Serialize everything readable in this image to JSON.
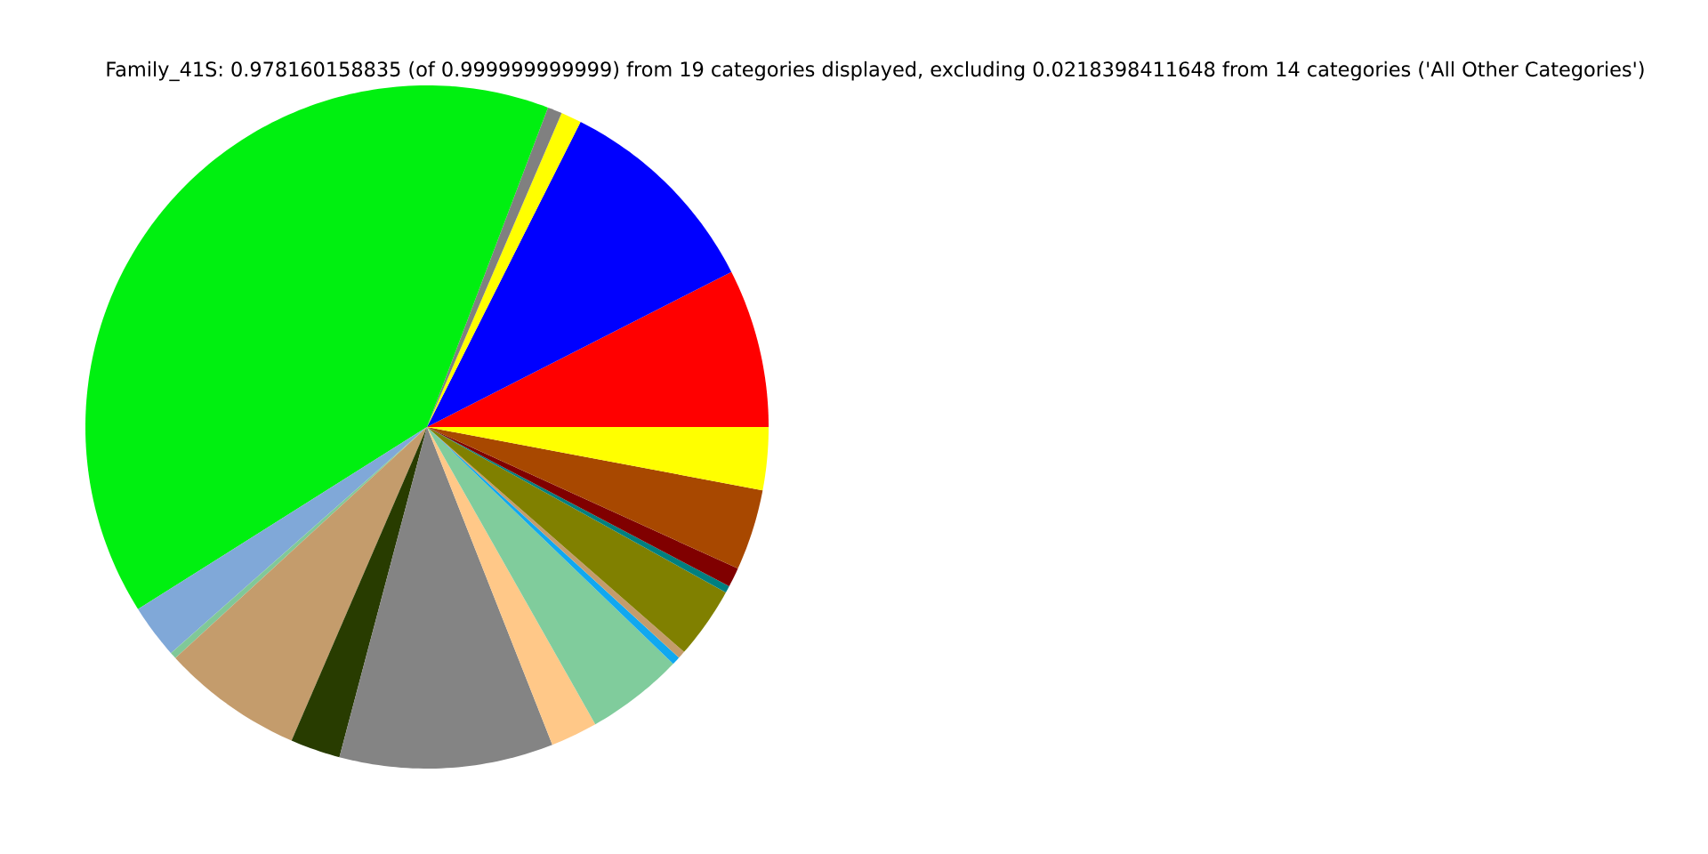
{
  "chart_data": {
    "type": "pie",
    "title": "Family_41S: 0.978160158835 (of 0.999999999999) from 19 categories displayed, excluding 0.0218398411648 from 14 categories ('All Other Categories')",
    "categories": [
      null,
      null,
      null,
      null,
      null,
      null,
      null,
      null,
      null,
      null,
      null,
      null,
      null,
      null,
      null,
      null,
      null,
      null,
      null
    ],
    "values": [
      7.5,
      10.08,
      0.97,
      0.69,
      39.71,
      2.56,
      0.31,
      6.69,
      2.36,
      10.11,
      2.22,
      4.61,
      0.39,
      0.36,
      3.39,
      0.33,
      0.92,
      3.83,
      2.97
    ],
    "colors": [
      "#ff0000",
      "#0000ff",
      "#ffff00",
      "#808080",
      "#00f010",
      "#80a8d8",
      "#80c898",
      "#c49c6c",
      "#283c00",
      "#848484",
      "#ffc888",
      "#80cc9c",
      "#10a8f0",
      "#c49c6c",
      "#808000",
      "#008080",
      "#800000",
      "#a84800",
      "#ffff00"
    ]
  }
}
